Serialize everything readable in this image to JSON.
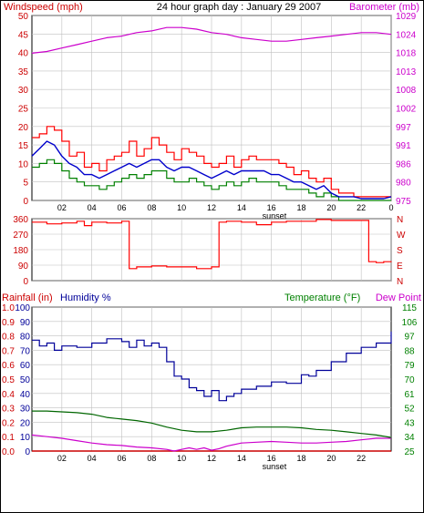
{
  "header": {
    "windspeed_label": "Windspeed (mph)",
    "title": "24 hour graph day : January 29 2007",
    "barometer_label": "Barometer (mb)"
  },
  "bottom_header": {
    "rainfall_label": "Rainfall (in)",
    "humidity_label": "Humidity %",
    "temperature_label": "Temperature (°F)",
    "dewpoint_label": "Dew Point"
  },
  "colors": {
    "frame": "#000000",
    "grid": "#c0c0c0",
    "wind": "#ff0000",
    "wind_avg": "#0000cc",
    "wind_low": "#008000",
    "barometer": "#cc00cc",
    "direction": "#ff0000",
    "humidity": "#000099",
    "temperature": "#006600",
    "dewpoint": "#cc00cc",
    "rain": "#cc0000",
    "left_axis_text": "#cc0000",
    "right_axis_text": "#cc00cc",
    "temp_axis_text": "#008000"
  },
  "chart_data": [
    {
      "type": "line",
      "title": "24 hour graph day : January 29 2007",
      "x_ticks": [
        "02",
        "04",
        "06",
        "08",
        "10",
        "12",
        "14",
        "16",
        "18",
        "20",
        "22",
        "0"
      ],
      "x_annotation": "sunset",
      "ylabel": "Windspeed (mph)",
      "ylim": [
        0,
        50
      ],
      "y_ticks": [
        0,
        5,
        10,
        15,
        20,
        25,
        30,
        35,
        40,
        45,
        50
      ],
      "y2label": "Barometer (mb)",
      "y2lim": [
        975,
        1029
      ],
      "y2_ticks": [
        975,
        980,
        986,
        991,
        997,
        1002,
        1008,
        1013,
        1018,
        1024,
        1029
      ],
      "grid": true,
      "series": [
        {
          "name": "Windspeed (mph)",
          "axis": "left",
          "hours": [
            0,
            0.5,
            1,
            1.5,
            2,
            2.5,
            3,
            3.5,
            4,
            4.5,
            5,
            5.5,
            6,
            6.5,
            7,
            7.5,
            8,
            8.5,
            9,
            9.5,
            10,
            10.5,
            11,
            11.5,
            12,
            12.5,
            13,
            13.5,
            14,
            14.5,
            15,
            15.5,
            16,
            16.5,
            17,
            17.5,
            18,
            18.5,
            19,
            19.5,
            20,
            20.5,
            21,
            21.5,
            22,
            22.5,
            23,
            23.5,
            24
          ],
          "values": [
            17,
            18,
            20,
            19,
            16,
            12,
            13,
            9,
            10,
            8,
            11,
            12,
            13,
            16,
            12,
            14,
            17,
            15,
            13,
            11,
            14,
            13,
            12,
            10,
            9,
            10,
            12,
            9,
            11,
            12,
            11,
            11,
            11,
            10,
            9,
            7,
            8,
            6,
            5,
            6,
            3,
            2,
            2,
            1,
            1,
            1,
            1,
            1,
            1
          ]
        },
        {
          "name": "Wind average",
          "axis": "left",
          "hours": [
            0,
            0.5,
            1,
            1.5,
            2,
            2.5,
            3,
            3.5,
            4,
            4.5,
            5,
            5.5,
            6,
            6.5,
            7,
            7.5,
            8,
            8.5,
            9,
            9.5,
            10,
            10.5,
            11,
            11.5,
            12,
            12.5,
            13,
            13.5,
            14,
            14.5,
            15,
            15.5,
            16,
            16.5,
            17,
            17.5,
            18,
            18.5,
            19,
            19.5,
            20,
            20.5,
            21,
            21.5,
            22,
            22.5,
            23,
            23.5,
            24
          ],
          "values": [
            12,
            14,
            16,
            15,
            12,
            10,
            9,
            7,
            7,
            6,
            7,
            8,
            9,
            10,
            9,
            10,
            11,
            11,
            9,
            8,
            9,
            9,
            8,
            7,
            6,
            7,
            8,
            7,
            8,
            8,
            8,
            8,
            7,
            7,
            6,
            5,
            5,
            4,
            3,
            4,
            2,
            1,
            1,
            1,
            0.5,
            0.5,
            0.5,
            0.5,
            1
          ]
        },
        {
          "name": "Wind low",
          "axis": "left",
          "hours": [
            0,
            0.5,
            1,
            1.5,
            2,
            2.5,
            3,
            3.5,
            4,
            4.5,
            5,
            5.5,
            6,
            6.5,
            7,
            7.5,
            8,
            8.5,
            9,
            9.5,
            10,
            10.5,
            11,
            11.5,
            12,
            12.5,
            13,
            13.5,
            14,
            14.5,
            15,
            15.5,
            16,
            16.5,
            17,
            17.5,
            18,
            18.5,
            19,
            19.5,
            20,
            20.5,
            21,
            21.5,
            22,
            22.5,
            23,
            23.5,
            24
          ],
          "values": [
            9,
            10,
            11,
            10,
            8,
            6,
            5,
            4,
            4,
            3,
            4,
            5,
            6,
            7,
            6,
            7,
            8,
            8,
            6,
            5,
            5,
            6,
            5,
            4,
            3,
            4,
            5,
            4,
            5,
            6,
            5,
            5,
            5,
            4,
            3,
            3,
            3,
            2,
            1,
            2,
            1,
            0,
            0,
            0,
            0,
            0,
            0,
            0,
            0
          ]
        },
        {
          "name": "Barometer (mb)",
          "axis": "right",
          "hours": [
            0,
            1,
            2,
            3,
            4,
            5,
            6,
            7,
            8,
            9,
            10,
            11,
            12,
            13,
            14,
            15,
            16,
            17,
            18,
            19,
            20,
            21,
            22,
            23,
            24
          ],
          "values": [
            1018,
            1018.5,
            1019.5,
            1020.5,
            1021.5,
            1022.5,
            1023,
            1024,
            1024.5,
            1025.5,
            1025.5,
            1025,
            1024,
            1023.5,
            1022.5,
            1022,
            1021.5,
            1021.5,
            1022,
            1022.5,
            1023,
            1023.5,
            1024,
            1024,
            1023.5
          ]
        }
      ]
    },
    {
      "type": "line",
      "x_ticks": [],
      "ylim": [
        0,
        360
      ],
      "y_ticks": [
        0,
        90,
        180,
        270,
        360
      ],
      "y2_ticks": [
        "N",
        "E",
        "S",
        "W",
        "N"
      ],
      "grid": true,
      "series": [
        {
          "name": "Wind direction",
          "hours": [
            0,
            1,
            2,
            3,
            3.5,
            4,
            5,
            6,
            6.5,
            7,
            8,
            9,
            10,
            11,
            12,
            12.5,
            13,
            14,
            15,
            16,
            17,
            18,
            19,
            20,
            21,
            21.5,
            22,
            22.5,
            23,
            23.5,
            24
          ],
          "values": [
            340,
            330,
            335,
            345,
            320,
            340,
            335,
            345,
            70,
            80,
            85,
            80,
            80,
            70,
            80,
            340,
            345,
            340,
            325,
            340,
            345,
            345,
            355,
            350,
            350,
            350,
            350,
            110,
            105,
            110,
            108
          ]
        }
      ]
    },
    {
      "type": "line",
      "x_ticks": [
        "02",
        "04",
        "06",
        "08",
        "10",
        "12",
        "14",
        "16",
        "18",
        "20",
        "22"
      ],
      "x_annotation": "sunset",
      "ylabel": "Rainfall (in)",
      "ylim": [
        0,
        1.0
      ],
      "y_ticks": [
        0,
        0.1,
        0.2,
        0.3,
        0.4,
        0.5,
        0.6,
        0.7,
        0.8,
        0.9,
        1.0
      ],
      "y_humidity_ticks": [
        0,
        10,
        20,
        30,
        40,
        50,
        60,
        70,
        80,
        90,
        100
      ],
      "y2label": "Temperature (°F)",
      "y2lim": [
        25,
        115
      ],
      "y2_ticks": [
        25,
        34,
        43,
        52,
        61,
        70,
        79,
        88,
        97,
        106,
        115
      ],
      "grid": true,
      "series": [
        {
          "name": "Humidity %",
          "scale": "humidity",
          "hours": [
            0,
            0.5,
            1,
            1.5,
            2,
            3,
            4,
            5,
            6,
            6.5,
            7,
            7.5,
            8,
            8.5,
            9,
            9.5,
            10,
            10.5,
            11,
            11.5,
            12,
            12.5,
            13,
            13.5,
            14,
            15,
            16,
            17,
            18,
            18.5,
            19,
            20,
            21,
            22,
            23,
            24
          ],
          "values": [
            77,
            73,
            75,
            70,
            73,
            72,
            75,
            78,
            76,
            72,
            77,
            73,
            75,
            72,
            62,
            52,
            50,
            44,
            42,
            38,
            42,
            35,
            38,
            40,
            43,
            45,
            48,
            47,
            53,
            52,
            56,
            62,
            68,
            72,
            75,
            83
          ]
        },
        {
          "name": "Temperature (°F)",
          "scale": "temp",
          "hours": [
            0,
            1,
            2,
            3,
            4,
            5,
            6,
            7,
            8,
            9,
            10,
            11,
            12,
            13,
            14,
            15,
            16,
            17,
            18,
            19,
            20,
            21,
            22,
            23,
            24
          ],
          "values": [
            50,
            50,
            49.5,
            49,
            48,
            46,
            45,
            44,
            42.5,
            40,
            38,
            37,
            37,
            38,
            39.5,
            40,
            40,
            40,
            39.5,
            38.5,
            38,
            37,
            36,
            35,
            33.5
          ]
        },
        {
          "name": "Dew Point",
          "scale": "temp",
          "hours": [
            0,
            1,
            2,
            3,
            4,
            5,
            6,
            7,
            8,
            9,
            9.5,
            10,
            10.5,
            11,
            11.5,
            12,
            12.5,
            13,
            14,
            15,
            16,
            17,
            18,
            19,
            20,
            21,
            22,
            23,
            24
          ],
          "values": [
            35,
            34,
            33,
            31.5,
            30,
            29,
            28.5,
            27.5,
            27,
            26,
            25,
            26,
            27,
            26,
            27,
            25.5,
            26.5,
            28,
            30,
            30.5,
            31,
            30.5,
            30,
            30,
            30.5,
            31,
            32,
            33,
            33
          ]
        },
        {
          "name": "Rainfall (in)",
          "scale": "rain",
          "hours": [
            0,
            24
          ],
          "values": [
            0,
            0
          ]
        }
      ]
    }
  ]
}
